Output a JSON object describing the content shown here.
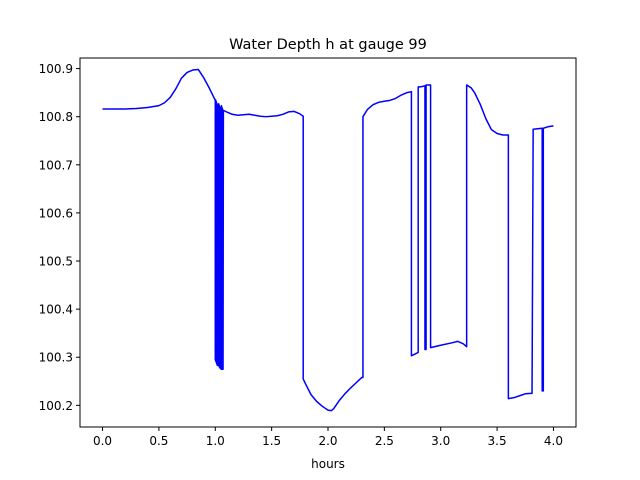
{
  "chart_data": {
    "type": "line",
    "title": "Water Depth h at gauge 99",
    "xlabel": "hours",
    "ylabel": "",
    "xlim": [
      -0.2,
      4.2
    ],
    "ylim": [
      100.155,
      100.922
    ],
    "xticks": [
      0.0,
      0.5,
      1.0,
      1.5,
      2.0,
      2.5,
      3.0,
      3.5,
      4.0
    ],
    "xtick_labels": [
      "0.0",
      "0.5",
      "1.0",
      "1.5",
      "2.0",
      "2.5",
      "3.0",
      "3.5",
      "4.0"
    ],
    "yticks": [
      100.2,
      100.3,
      100.4,
      100.5,
      100.6,
      100.7,
      100.8,
      100.9
    ],
    "ytick_labels": [
      "100.2",
      "100.3",
      "100.4",
      "100.5",
      "100.6",
      "100.7",
      "100.8",
      "100.9"
    ],
    "grid": false,
    "series": [
      {
        "color": "#0000ff",
        "x": [
          0.0,
          0.1,
          0.2,
          0.3,
          0.4,
          0.5,
          0.55,
          0.6,
          0.65,
          0.7,
          0.75,
          0.8,
          0.85,
          0.9,
          0.95,
          1.0,
          1.0,
          1.003,
          1.003,
          1.006,
          1.006,
          1.009,
          1.009,
          1.012,
          1.012,
          1.015,
          1.015,
          1.018,
          1.018,
          1.021,
          1.021,
          1.024,
          1.024,
          1.027,
          1.027,
          1.03,
          1.03,
          1.033,
          1.033,
          1.036,
          1.036,
          1.039,
          1.039,
          1.042,
          1.042,
          1.045,
          1.045,
          1.048,
          1.048,
          1.051,
          1.051,
          1.054,
          1.054,
          1.057,
          1.057,
          1.06,
          1.06,
          1.063,
          1.063,
          1.066,
          1.066,
          1.069,
          1.069,
          1.072,
          1.1,
          1.15,
          1.2,
          1.25,
          1.3,
          1.35,
          1.4,
          1.45,
          1.5,
          1.55,
          1.6,
          1.65,
          1.7,
          1.75,
          1.78,
          1.78,
          1.8,
          1.85,
          1.9,
          1.95,
          2.0,
          2.03,
          2.05,
          2.1,
          2.15,
          2.2,
          2.25,
          2.3,
          2.31,
          2.31,
          2.35,
          2.4,
          2.45,
          2.5,
          2.55,
          2.6,
          2.65,
          2.7,
          2.74,
          2.74,
          2.8,
          2.8,
          2.82,
          2.86,
          2.86,
          2.87,
          2.87,
          2.9,
          2.91,
          2.91,
          3.0,
          3.1,
          3.15,
          3.2,
          3.23,
          3.23,
          3.27,
          3.3,
          3.35,
          3.4,
          3.45,
          3.5,
          3.55,
          3.59,
          3.6,
          3.6,
          3.65,
          3.7,
          3.75,
          3.8,
          3.81,
          3.82,
          3.9,
          3.9,
          3.91,
          3.91,
          3.95,
          4.0
        ],
        "y": [
          100.816,
          100.816,
          100.816,
          100.817,
          100.819,
          100.823,
          100.829,
          100.84,
          100.858,
          100.88,
          100.892,
          100.897,
          100.898,
          100.88,
          100.858,
          100.834,
          100.295,
          100.835,
          100.293,
          100.833,
          100.291,
          100.831,
          100.289,
          100.829,
          100.287,
          100.827,
          100.285,
          100.825,
          100.283,
          100.823,
          100.288,
          100.821,
          100.286,
          100.819,
          100.284,
          100.827,
          100.283,
          100.825,
          100.281,
          100.823,
          100.28,
          100.821,
          100.279,
          100.819,
          100.278,
          100.817,
          100.277,
          100.815,
          100.276,
          100.813,
          100.276,
          100.823,
          100.275,
          100.821,
          100.275,
          100.819,
          100.275,
          100.817,
          100.275,
          100.815,
          100.275,
          100.813,
          100.275,
          100.813,
          100.81,
          100.805,
          100.803,
          100.804,
          100.805,
          100.803,
          100.801,
          100.8,
          100.801,
          100.802,
          100.805,
          100.81,
          100.811,
          100.806,
          100.801,
          100.255,
          100.245,
          100.222,
          100.208,
          100.198,
          100.19,
          100.189,
          100.193,
          100.21,
          100.224,
          100.236,
          100.247,
          100.258,
          100.258,
          100.8,
          100.815,
          100.825,
          100.83,
          100.832,
          100.834,
          100.838,
          100.845,
          100.85,
          100.852,
          100.303,
          100.31,
          100.862,
          100.862,
          100.864,
          100.316,
          100.316,
          100.866,
          100.866,
          100.866,
          100.32,
          100.325,
          100.33,
          100.333,
          100.328,
          100.322,
          100.866,
          100.86,
          100.85,
          100.826,
          100.796,
          100.773,
          100.765,
          100.762,
          100.762,
          100.762,
          100.214,
          100.216,
          100.22,
          100.224,
          100.225,
          100.225,
          100.774,
          100.776,
          100.23,
          100.23,
          100.776,
          100.779,
          100.781
        ]
      }
    ]
  }
}
